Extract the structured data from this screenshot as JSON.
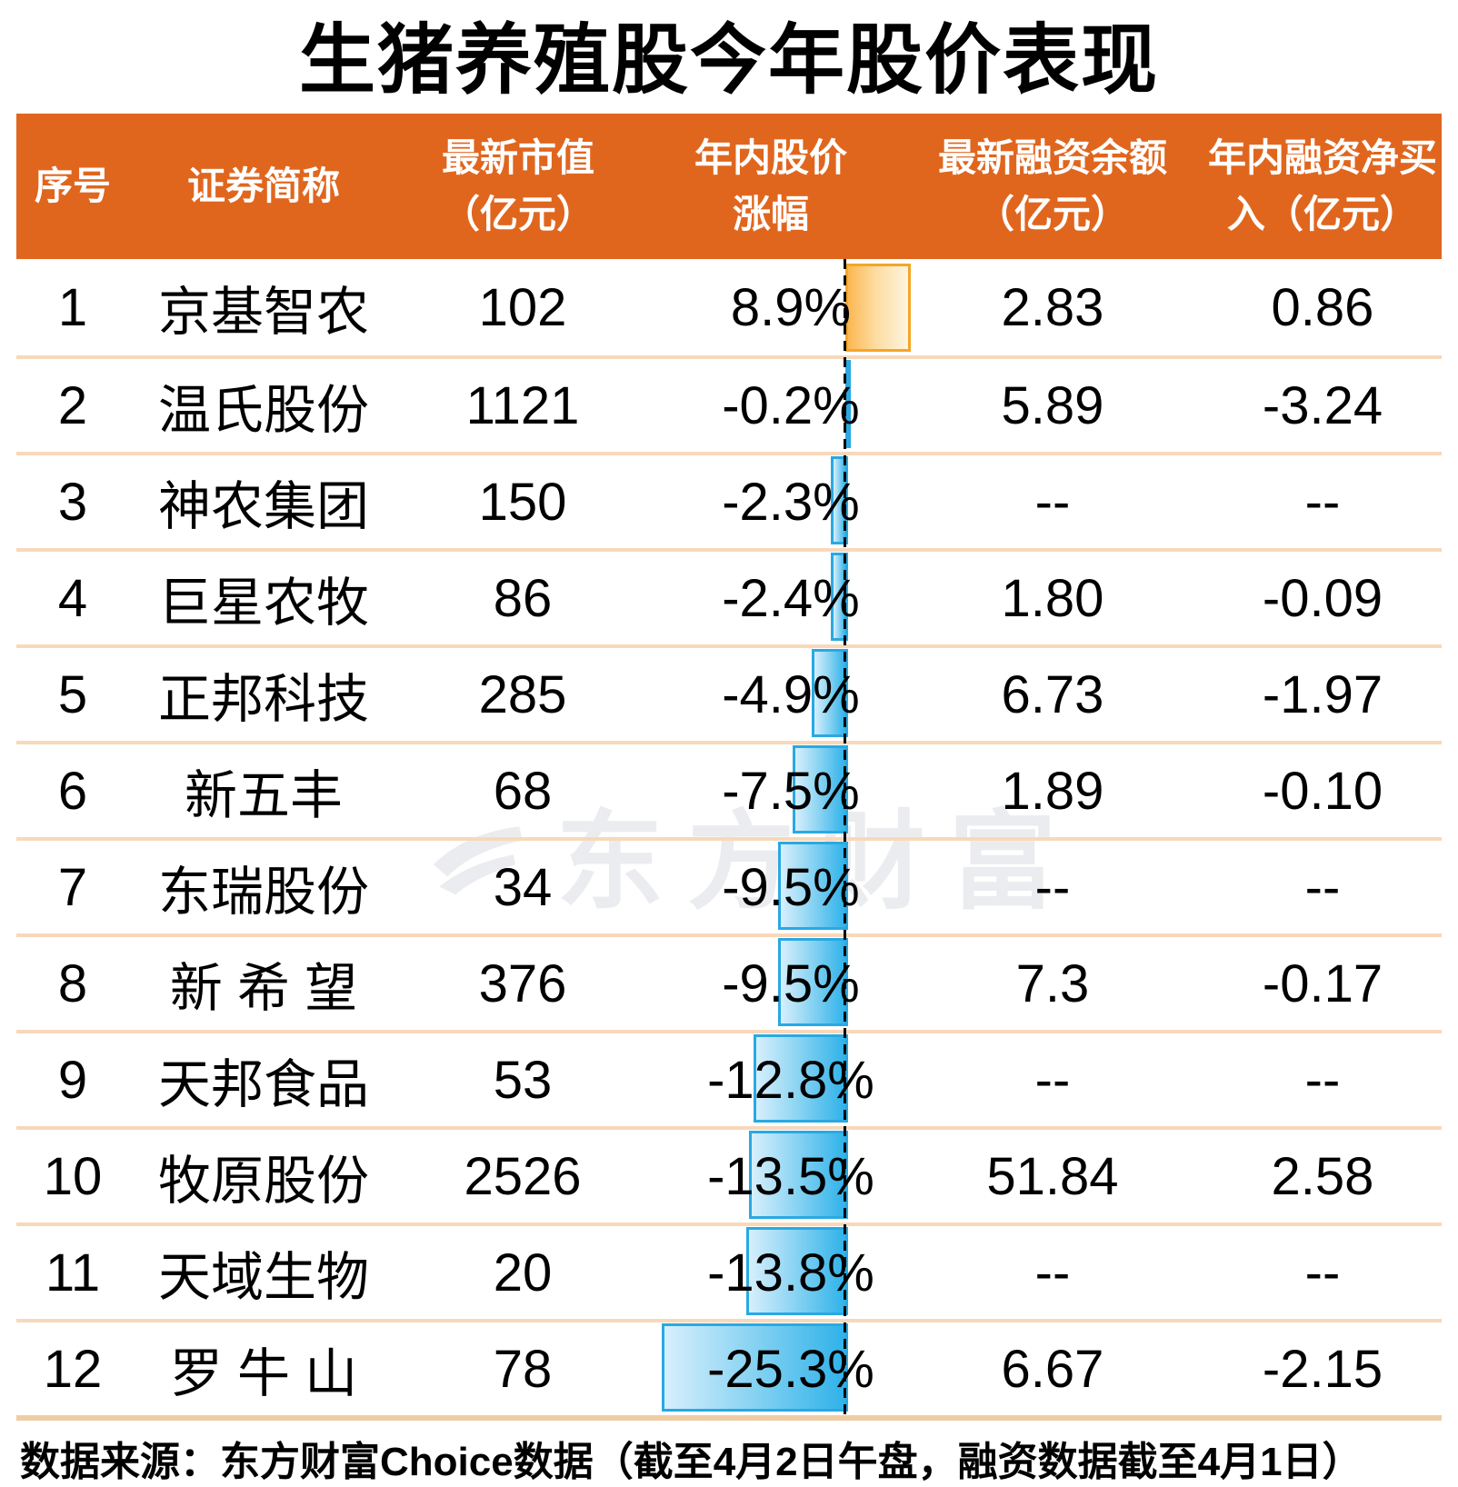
{
  "title": "生猪养殖股今年股价表现",
  "watermark": {
    "text": "东方财富",
    "logo": "eastmoney-swoosh-logo"
  },
  "table": {
    "headers": {
      "seq": "序号",
      "name": "证券简称",
      "cap_line1": "最新市值",
      "cap_line2": "（亿元）",
      "pct_line1": "年内股价",
      "pct_line2": "涨幅",
      "balance_line1": "最新融资余额",
      "balance_line2": "（亿元）",
      "net_line1": "年内融资净买",
      "net_line2": "入（亿元）"
    },
    "rows": [
      {
        "seq": "1",
        "name": "京基智农",
        "cap": "102",
        "pct": "8.9%",
        "pct_value": 8.9,
        "balance": "2.83",
        "net": "0.86"
      },
      {
        "seq": "2",
        "name": "温氏股份",
        "cap": "1121",
        "pct": "-0.2%",
        "pct_value": -0.2,
        "balance": "5.89",
        "net": "-3.24"
      },
      {
        "seq": "3",
        "name": "神农集团",
        "cap": "150",
        "pct": "-2.3%",
        "pct_value": -2.3,
        "balance": "--",
        "net": "--"
      },
      {
        "seq": "4",
        "name": "巨星农牧",
        "cap": "86",
        "pct": "-2.4%",
        "pct_value": -2.4,
        "balance": "1.80",
        "net": "-0.09"
      },
      {
        "seq": "5",
        "name": "正邦科技",
        "cap": "285",
        "pct": "-4.9%",
        "pct_value": -4.9,
        "balance": "6.73",
        "net": "-1.97"
      },
      {
        "seq": "6",
        "name": "新五丰",
        "cap": "68",
        "pct": "-7.5%",
        "pct_value": -7.5,
        "balance": "1.89",
        "net": "-0.10"
      },
      {
        "seq": "7",
        "name": "东瑞股份",
        "cap": "34",
        "pct": "-9.5%",
        "pct_value": -9.5,
        "balance": "--",
        "net": "--"
      },
      {
        "seq": "8",
        "name": "新 希 望",
        "cap": "376",
        "pct": "-9.5%",
        "pct_value": -9.5,
        "balance": "7.3",
        "net": "-0.17"
      },
      {
        "seq": "9",
        "name": "天邦食品",
        "cap": "53",
        "pct": "-12.8%",
        "pct_value": -12.8,
        "balance": "--",
        "net": "--"
      },
      {
        "seq": "10",
        "name": "牧原股份",
        "cap": "2526",
        "pct": "-13.5%",
        "pct_value": -13.5,
        "balance": "51.84",
        "net": "2.58"
      },
      {
        "seq": "11",
        "name": "天域生物",
        "cap": "20",
        "pct": "-13.8%",
        "pct_value": -13.8,
        "balance": "--",
        "net": "--"
      },
      {
        "seq": "12",
        "name": "罗 牛 山",
        "cap": "78",
        "pct": "-25.3%",
        "pct_value": -25.3,
        "balance": "6.67",
        "net": "-2.15"
      }
    ]
  },
  "footer": "数据来源：东方财富Choice数据（截至4月2日午盘，融资数据截至4月1日）",
  "colors": {
    "header_bg": "#E0661E",
    "header_text": "#ffffff",
    "row_separator": "#F8D8BA",
    "table_bottom_border": "#EFCDA4",
    "positive_bar_border": "#F4A627",
    "positive_bar_fill_start": "#FBB751",
    "positive_bar_fill_end": "#FEF4DE",
    "negative_bar_border": "#29A9E2",
    "negative_bar_fill_start": "#D7EFFC",
    "negative_bar_fill_end": "#2FB2E9",
    "axis_dash": "#000000",
    "body_text": "#000000"
  },
  "chart_data": {
    "type": "bar",
    "orientation": "horizontal",
    "title": "生猪养殖股今年股价表现",
    "series_label": "年内股价涨幅 (%)",
    "categories": [
      "京基智农",
      "温氏股份",
      "神农集团",
      "巨星农牧",
      "正邦科技",
      "新五丰",
      "东瑞股份",
      "新希望",
      "天邦食品",
      "牧原股份",
      "天域生物",
      "罗牛山"
    ],
    "values": [
      8.9,
      -0.2,
      -2.3,
      -2.4,
      -4.9,
      -7.5,
      -9.5,
      -9.5,
      -12.8,
      -13.5,
      -13.8,
      -25.3
    ],
    "value_range_pct": [
      -25.3,
      8.9
    ],
    "zero_axis": true,
    "grid": false,
    "legend": false,
    "table_columns": [
      "序号",
      "证券简称",
      "最新市值（亿元）",
      "年内股价涨幅",
      "最新融资余额（亿元）",
      "年内融资净买入（亿元）"
    ],
    "table_rows": [
      [
        "1",
        "京基智农",
        "102",
        "8.9%",
        "2.83",
        "0.86"
      ],
      [
        "2",
        "温氏股份",
        "1121",
        "-0.2%",
        "5.89",
        "-3.24"
      ],
      [
        "3",
        "神农集团",
        "150",
        "-2.3%",
        "--",
        "--"
      ],
      [
        "4",
        "巨星农牧",
        "86",
        "-2.4%",
        "1.80",
        "-0.09"
      ],
      [
        "5",
        "正邦科技",
        "285",
        "-4.9%",
        "6.73",
        "-1.97"
      ],
      [
        "6",
        "新五丰",
        "68",
        "-7.5%",
        "1.89",
        "-0.10"
      ],
      [
        "7",
        "东瑞股份",
        "34",
        "-9.5%",
        "--",
        "--"
      ],
      [
        "8",
        "新希望",
        "376",
        "-9.5%",
        "7.3",
        "-0.17"
      ],
      [
        "9",
        "天邦食品",
        "53",
        "-12.8%",
        "--",
        "--"
      ],
      [
        "10",
        "牧原股份",
        "2526",
        "-13.5%",
        "51.84",
        "2.58"
      ],
      [
        "11",
        "天域生物",
        "20",
        "-13.8%",
        "--",
        "--"
      ],
      [
        "12",
        "罗牛山",
        "78",
        "-25.3%",
        "6.67",
        "-2.15"
      ]
    ]
  }
}
